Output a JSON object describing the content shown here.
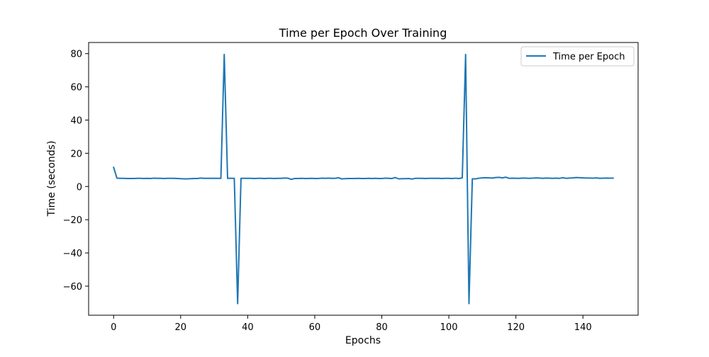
{
  "chart_data": {
    "type": "line",
    "title": "Time per Epoch Over Training",
    "xlabel": "Epochs",
    "ylabel": "Time (seconds)",
    "xlim": [
      -7.45,
      156.45
    ],
    "ylim": [
      -77.5,
      86.7
    ],
    "xticks": [
      0,
      20,
      40,
      60,
      80,
      100,
      120,
      140
    ],
    "yticks": [
      -60,
      -40,
      -20,
      0,
      20,
      40,
      60,
      80
    ],
    "grid": false,
    "legend_position": "top-right",
    "series": [
      {
        "name": "Time per Epoch",
        "color": "#1f77b4",
        "x": [
          0,
          1,
          2,
          3,
          4,
          5,
          6,
          7,
          8,
          9,
          10,
          11,
          12,
          13,
          14,
          15,
          16,
          17,
          18,
          19,
          20,
          21,
          22,
          23,
          24,
          25,
          26,
          27,
          28,
          29,
          30,
          31,
          32,
          33,
          34,
          35,
          36,
          37,
          38,
          39,
          40,
          41,
          42,
          43,
          44,
          45,
          46,
          47,
          48,
          49,
          50,
          51,
          52,
          53,
          54,
          55,
          56,
          57,
          58,
          59,
          60,
          61,
          62,
          63,
          64,
          65,
          66,
          67,
          68,
          69,
          70,
          71,
          72,
          73,
          74,
          75,
          76,
          77,
          78,
          79,
          80,
          81,
          82,
          83,
          84,
          85,
          86,
          87,
          88,
          89,
          90,
          91,
          92,
          93,
          94,
          95,
          96,
          97,
          98,
          99,
          100,
          101,
          102,
          103,
          104,
          105,
          106,
          107,
          108,
          109,
          110,
          111,
          112,
          113,
          114,
          115,
          116,
          117,
          118,
          119,
          120,
          121,
          122,
          123,
          124,
          125,
          126,
          127,
          128,
          129,
          130,
          131,
          132,
          133,
          134,
          135,
          136,
          137,
          138,
          139,
          140,
          141,
          142,
          143,
          144,
          145,
          146,
          147,
          148,
          149
        ],
        "y": [
          11.5,
          5.0,
          4.9,
          4.9,
          4.8,
          4.8,
          4.8,
          4.9,
          4.9,
          4.8,
          4.9,
          4.8,
          5.0,
          4.9,
          4.9,
          4.8,
          4.9,
          4.9,
          4.9,
          4.8,
          4.7,
          4.6,
          4.6,
          4.7,
          4.8,
          4.8,
          5.1,
          4.9,
          4.9,
          4.9,
          4.9,
          4.9,
          4.9,
          79.5,
          4.9,
          4.9,
          4.9,
          -70.5,
          4.9,
          4.9,
          4.9,
          4.9,
          4.8,
          4.9,
          4.9,
          4.8,
          4.9,
          4.9,
          4.8,
          4.9,
          4.9,
          5.1,
          5.0,
          4.3,
          4.8,
          4.8,
          4.9,
          4.8,
          4.8,
          4.9,
          4.8,
          4.8,
          5.0,
          4.9,
          5.0,
          4.9,
          4.9,
          5.3,
          4.6,
          4.7,
          4.8,
          4.8,
          4.8,
          4.9,
          4.8,
          4.8,
          4.9,
          4.8,
          4.9,
          4.8,
          4.8,
          5.0,
          4.9,
          4.8,
          5.4,
          4.6,
          4.7,
          4.7,
          4.8,
          4.5,
          4.9,
          4.9,
          4.9,
          4.8,
          4.9,
          4.9,
          4.9,
          4.9,
          4.8,
          4.9,
          4.9,
          4.8,
          5.0,
          4.8,
          5.2,
          79.5,
          -70.5,
          4.6,
          4.6,
          5.0,
          5.2,
          5.3,
          5.2,
          5.1,
          5.4,
          5.5,
          5.2,
          5.6,
          4.9,
          5.0,
          4.9,
          4.9,
          5.1,
          5.0,
          4.9,
          5.0,
          5.2,
          5.1,
          4.9,
          5.1,
          5.0,
          4.9,
          5.0,
          4.9,
          5.3,
          4.9,
          5.1,
          5.2,
          5.4,
          5.3,
          5.2,
          5.1,
          5.1,
          5.0,
          5.2,
          4.9,
          5.0,
          5.1,
          5.0,
          5.0
        ]
      }
    ]
  }
}
